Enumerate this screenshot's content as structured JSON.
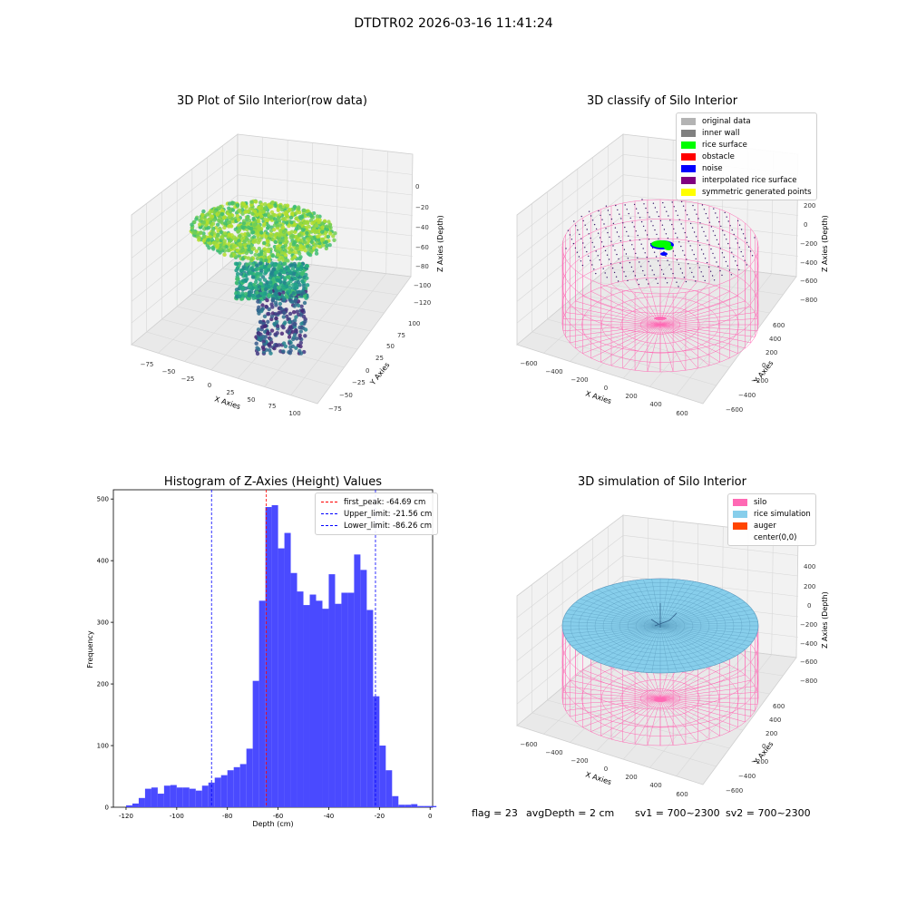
{
  "suptitle": "DTDTR02 2026-03-16 11:41:24",
  "colors": {
    "original_data": "#b3b3b3",
    "inner_wall": "#808080",
    "rice_surface": "#00ff00",
    "obstacle": "#ff0000",
    "noise": "#0000ff",
    "interpolated": "#800080",
    "symmetric": "#ffff00",
    "silo": "#ff69b4",
    "rice_simulation": "#87ceeb",
    "auger": "#ff4500",
    "hist_bar": "#4a4aff"
  },
  "panel1": {
    "title": "3D Plot of Silo Interior(row data)",
    "xlabel": "X Axies",
    "ylabel": "Y Axies",
    "zlabel": "Z Axies (Depth)",
    "xticks": [
      "−75",
      "−50",
      "−25",
      "0",
      "25",
      "50",
      "75",
      "100"
    ],
    "yticks": [
      "−75",
      "−50",
      "−25",
      "0",
      "25",
      "50",
      "75",
      "100"
    ],
    "zticks": [
      "0",
      "−20",
      "−40",
      "−60",
      "−80",
      "−100",
      "−120"
    ]
  },
  "panel2": {
    "title": "3D classify of Silo Interior",
    "xlabel": "X Axies",
    "ylabel": "Y Axies",
    "zlabel": "Z Axies (Depth)",
    "xticks": [
      "−600",
      "−400",
      "−200",
      "0",
      "200",
      "400",
      "600"
    ],
    "yticks": [
      "−600",
      "−400",
      "−200",
      "0",
      "200",
      "400",
      "600"
    ],
    "zticks": [
      "200",
      "0",
      "−200",
      "−400",
      "−600",
      "−800"
    ],
    "legend": [
      "original data",
      "inner wall",
      "rice surface",
      "obstacle",
      "noise",
      "interpolated rice surface",
      "symmetric generated points"
    ]
  },
  "panel3": {
    "title": "3D simulation of Silo Interior",
    "xlabel": "X Axies",
    "ylabel": "Y Axies",
    "zlabel": "Z Axies (Depth)",
    "xticks": [
      "−600",
      "−400",
      "−200",
      "0",
      "200",
      "400",
      "600"
    ],
    "yticks": [
      "−600",
      "−400",
      "−200",
      "0",
      "200",
      "400",
      "600"
    ],
    "zticks": [
      "400",
      "200",
      "0",
      "−200",
      "−400",
      "−600",
      "−800"
    ],
    "legend": [
      "silo",
      "rice simulation",
      "auger",
      "center(0,0)"
    ]
  },
  "chart_data": {
    "type": "bar",
    "title": "Histogram of Z-Axies (Height) Values",
    "xlabel": "Depth (cm)",
    "ylabel": "Frequency",
    "xlim": [
      -125,
      1
    ],
    "ylim": [
      0,
      515
    ],
    "xticks": [
      -120,
      -100,
      -80,
      -60,
      -40,
      -20,
      0
    ],
    "yticks": [
      0,
      100,
      200,
      300,
      400,
      500
    ],
    "bin_start": -120,
    "bin_width": 2.5,
    "values": [
      3,
      6,
      15,
      30,
      32,
      22,
      35,
      36,
      32,
      32,
      30,
      27,
      35,
      40,
      48,
      52,
      60,
      65,
      70,
      95,
      205,
      335,
      487,
      490,
      420,
      445,
      380,
      350,
      328,
      345,
      335,
      322,
      378,
      330,
      348,
      348,
      410,
      385,
      320,
      180,
      100,
      60,
      18,
      4,
      4,
      5,
      2,
      2,
      2
    ],
    "vlines": [
      {
        "label": "first_peak: -64.69 cm",
        "x": -64.69,
        "color": "#ff0000"
      },
      {
        "label": "Upper_limit: -21.56 cm",
        "x": -21.56,
        "color": "#0000ff"
      },
      {
        "label": "Lower_limit: -86.26 cm",
        "x": -86.26,
        "color": "#0000ff"
      }
    ],
    "legend_position": "top-right"
  },
  "footer": {
    "flag": "flag = 23",
    "avg": "avgDepth = 2 cm",
    "sv1": "sv1 = 700~2300",
    "sv2": "sv2 = 700~2300"
  }
}
